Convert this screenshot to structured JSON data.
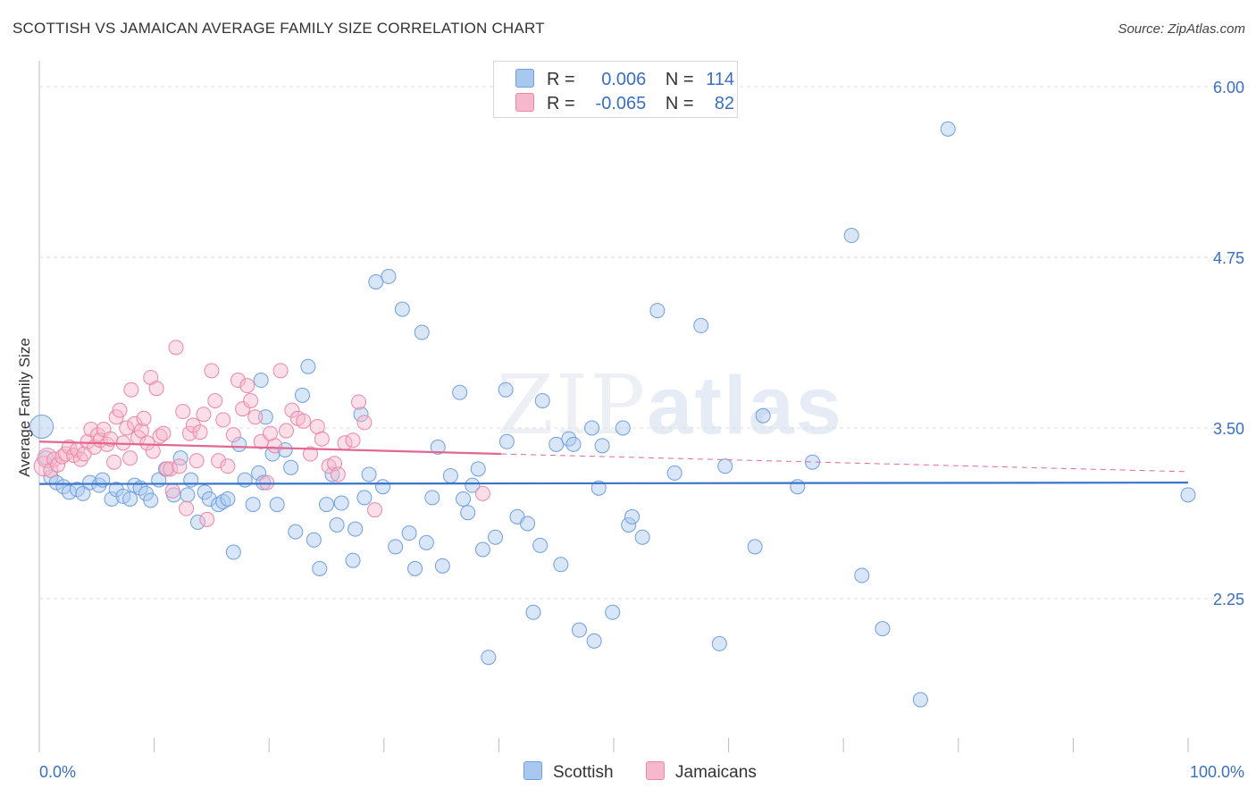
{
  "title": "SCOTTISH VS JAMAICAN AVERAGE FAMILY SIZE CORRELATION CHART",
  "source": "Source: ZipAtlas.com",
  "watermark": {
    "zip": "ZIP",
    "atlas": "atlas"
  },
  "legend": {
    "rows": [
      {
        "r_label": "R =",
        "r_value": "0.006",
        "n_label": "N =",
        "n_value": "114",
        "color": "#a9c8f0"
      },
      {
        "r_label": "R =",
        "r_value": "-0.065",
        "n_label": "N =",
        "n_value": "82",
        "color": "#f6b8cb"
      }
    ]
  },
  "bottom_legend": [
    {
      "label": "Scottish",
      "color": "#a9c8f0"
    },
    {
      "label": "Jamaicans",
      "color": "#f6b8cb"
    }
  ],
  "chart_data": {
    "type": "scatter",
    "title": "SCOTTISH VS JAMAICAN AVERAGE FAMILY SIZE CORRELATION CHART",
    "xlabel": "",
    "ylabel": "Average Family Size",
    "xlim": [
      0,
      100
    ],
    "ylim": [
      1.25,
      6.15
    ],
    "x_tick_labels": [
      "0.0%",
      "100.0%"
    ],
    "y_ticks": [
      2.25,
      3.5,
      4.75,
      6.0
    ],
    "y_tick_labels": [
      "2.25",
      "3.50",
      "4.75",
      "6.00"
    ],
    "grid": "horizontal dashed",
    "legend_position": "top-center",
    "series": [
      {
        "name": "Scottish",
        "color": "#6f9fe0",
        "fill": "#a9c8f0",
        "trend": {
          "x": [
            0,
            100
          ],
          "y": [
            3.09,
            3.1
          ],
          "color": "#3a74c9"
        },
        "points": [
          [
            0.2,
            3.51
          ],
          [
            0.6,
            3.28
          ],
          [
            1.0,
            3.14
          ],
          [
            1.5,
            3.1
          ],
          [
            2.1,
            3.07
          ],
          [
            2.6,
            3.03
          ],
          [
            3.3,
            3.05
          ],
          [
            3.8,
            3.02
          ],
          [
            4.4,
            3.1
          ],
          [
            5.2,
            3.08
          ],
          [
            5.5,
            3.12
          ],
          [
            6.3,
            2.98
          ],
          [
            6.7,
            3.05
          ],
          [
            7.3,
            3.0
          ],
          [
            7.9,
            2.98
          ],
          [
            8.3,
            3.08
          ],
          [
            8.8,
            3.06
          ],
          [
            9.3,
            3.02
          ],
          [
            9.7,
            2.97
          ],
          [
            10.4,
            3.12
          ],
          [
            11.0,
            3.2
          ],
          [
            11.7,
            3.01
          ],
          [
            12.3,
            3.28
          ],
          [
            12.9,
            3.01
          ],
          [
            13.2,
            3.12
          ],
          [
            13.8,
            2.81
          ],
          [
            14.4,
            3.03
          ],
          [
            14.8,
            2.98
          ],
          [
            15.6,
            2.94
          ],
          [
            16.0,
            2.96
          ],
          [
            16.4,
            2.98
          ],
          [
            16.9,
            2.59
          ],
          [
            17.4,
            3.38
          ],
          [
            17.9,
            3.12
          ],
          [
            18.6,
            2.94
          ],
          [
            19.1,
            3.17
          ],
          [
            19.5,
            3.1
          ],
          [
            19.3,
            3.85
          ],
          [
            19.7,
            3.58
          ],
          [
            20.3,
            3.31
          ],
          [
            20.7,
            2.94
          ],
          [
            21.4,
            3.34
          ],
          [
            21.9,
            3.21
          ],
          [
            22.3,
            2.74
          ],
          [
            22.9,
            3.74
          ],
          [
            23.4,
            3.95
          ],
          [
            23.9,
            2.68
          ],
          [
            24.4,
            2.47
          ],
          [
            25.0,
            2.94
          ],
          [
            25.5,
            3.16
          ],
          [
            25.9,
            2.79
          ],
          [
            26.3,
            2.95
          ],
          [
            27.3,
            2.53
          ],
          [
            27.5,
            2.76
          ],
          [
            28.0,
            3.6
          ],
          [
            28.3,
            2.99
          ],
          [
            28.7,
            3.16
          ],
          [
            29.3,
            4.57
          ],
          [
            29.9,
            3.07
          ],
          [
            30.4,
            4.61
          ],
          [
            31.0,
            2.63
          ],
          [
            31.6,
            4.37
          ],
          [
            32.2,
            2.73
          ],
          [
            32.7,
            2.47
          ],
          [
            33.3,
            4.2
          ],
          [
            33.7,
            2.66
          ],
          [
            34.2,
            2.99
          ],
          [
            34.7,
            3.36
          ],
          [
            35.1,
            2.49
          ],
          [
            35.8,
            3.15
          ],
          [
            36.6,
            3.76
          ],
          [
            36.9,
            2.98
          ],
          [
            37.3,
            2.88
          ],
          [
            37.7,
            3.08
          ],
          [
            38.6,
            2.61
          ],
          [
            38.2,
            3.2
          ],
          [
            39.1,
            1.82
          ],
          [
            39.7,
            2.7
          ],
          [
            40.6,
            3.78
          ],
          [
            40.7,
            3.4
          ],
          [
            41.6,
            2.85
          ],
          [
            42.5,
            2.8
          ],
          [
            43.0,
            2.15
          ],
          [
            43.6,
            2.64
          ],
          [
            43.8,
            3.7
          ],
          [
            45.0,
            3.38
          ],
          [
            45.4,
            2.5
          ],
          [
            46.1,
            3.42
          ],
          [
            46.5,
            3.38
          ],
          [
            47.0,
            2.02
          ],
          [
            48.1,
            3.5
          ],
          [
            48.3,
            1.94
          ],
          [
            48.7,
            3.06
          ],
          [
            49.0,
            3.37
          ],
          [
            49.9,
            2.15
          ],
          [
            50.8,
            3.5
          ],
          [
            51.3,
            2.79
          ],
          [
            51.6,
            2.85
          ],
          [
            52.5,
            2.7
          ],
          [
            53.8,
            4.36
          ],
          [
            55.3,
            3.17
          ],
          [
            57.6,
            4.25
          ],
          [
            59.2,
            1.92
          ],
          [
            59.7,
            3.22
          ],
          [
            62.3,
            2.63
          ],
          [
            63.0,
            3.59
          ],
          [
            66.0,
            3.07
          ],
          [
            67.3,
            3.25
          ],
          [
            70.7,
            4.91
          ],
          [
            71.6,
            2.42
          ],
          [
            73.4,
            2.03
          ],
          [
            76.7,
            1.51
          ],
          [
            79.1,
            5.69
          ],
          [
            100.0,
            3.01
          ]
        ]
      },
      {
        "name": "Jamaicans",
        "color": "#ee86a6",
        "fill": "#f6b8cb",
        "trend": {
          "x": [
            0,
            40.2
          ],
          "y": [
            3.4,
            3.31
          ],
          "color": "#e26791",
          "dashed_extension": {
            "x": [
              40.2,
              100
            ],
            "y": [
              3.31,
              3.18
            ]
          }
        },
        "points": [
          [
            0.4,
            3.22
          ],
          [
            0.7,
            3.28
          ],
          [
            1.0,
            3.19
          ],
          [
            1.3,
            3.27
          ],
          [
            1.6,
            3.23
          ],
          [
            2.0,
            3.29
          ],
          [
            2.3,
            3.31
          ],
          [
            2.6,
            3.36
          ],
          [
            3.0,
            3.3
          ],
          [
            3.3,
            3.34
          ],
          [
            3.6,
            3.27
          ],
          [
            3.9,
            3.31
          ],
          [
            4.2,
            3.4
          ],
          [
            4.5,
            3.49
          ],
          [
            4.8,
            3.36
          ],
          [
            5.1,
            3.45
          ],
          [
            5.3,
            3.41
          ],
          [
            5.6,
            3.49
          ],
          [
            5.9,
            3.38
          ],
          [
            6.2,
            3.42
          ],
          [
            6.5,
            3.25
          ],
          [
            6.7,
            3.58
          ],
          [
            7.0,
            3.63
          ],
          [
            7.3,
            3.39
          ],
          [
            7.6,
            3.5
          ],
          [
            7.9,
            3.28
          ],
          [
            8.0,
            3.78
          ],
          [
            8.3,
            3.53
          ],
          [
            8.6,
            3.43
          ],
          [
            8.9,
            3.48
          ],
          [
            9.1,
            3.57
          ],
          [
            9.4,
            3.39
          ],
          [
            9.7,
            3.87
          ],
          [
            9.9,
            3.33
          ],
          [
            10.2,
            3.79
          ],
          [
            10.5,
            3.44
          ],
          [
            10.8,
            3.46
          ],
          [
            11.1,
            3.2
          ],
          [
            11.4,
            3.2
          ],
          [
            11.6,
            3.04
          ],
          [
            11.9,
            4.09
          ],
          [
            12.2,
            3.22
          ],
          [
            12.5,
            3.62
          ],
          [
            12.8,
            2.91
          ],
          [
            13.1,
            3.46
          ],
          [
            13.4,
            3.52
          ],
          [
            13.7,
            3.26
          ],
          [
            14.0,
            3.47
          ],
          [
            14.3,
            3.6
          ],
          [
            14.6,
            2.83
          ],
          [
            15.0,
            3.92
          ],
          [
            15.3,
            3.7
          ],
          [
            15.6,
            3.26
          ],
          [
            16.0,
            3.56
          ],
          [
            16.4,
            3.22
          ],
          [
            16.9,
            3.45
          ],
          [
            17.3,
            3.85
          ],
          [
            17.7,
            3.64
          ],
          [
            18.1,
            3.81
          ],
          [
            18.4,
            3.7
          ],
          [
            18.8,
            3.58
          ],
          [
            19.3,
            3.4
          ],
          [
            19.8,
            3.1
          ],
          [
            20.1,
            3.46
          ],
          [
            20.5,
            3.37
          ],
          [
            21.0,
            3.92
          ],
          [
            21.5,
            3.48
          ],
          [
            22.0,
            3.63
          ],
          [
            22.5,
            3.57
          ],
          [
            23.0,
            3.55
          ],
          [
            23.6,
            3.31
          ],
          [
            24.2,
            3.51
          ],
          [
            24.6,
            3.42
          ],
          [
            25.2,
            3.22
          ],
          [
            25.7,
            3.24
          ],
          [
            26.0,
            3.16
          ],
          [
            26.6,
            3.39
          ],
          [
            27.3,
            3.41
          ],
          [
            27.8,
            3.69
          ],
          [
            28.3,
            3.54
          ],
          [
            29.2,
            2.9
          ],
          [
            38.6,
            3.02
          ]
        ]
      }
    ]
  }
}
